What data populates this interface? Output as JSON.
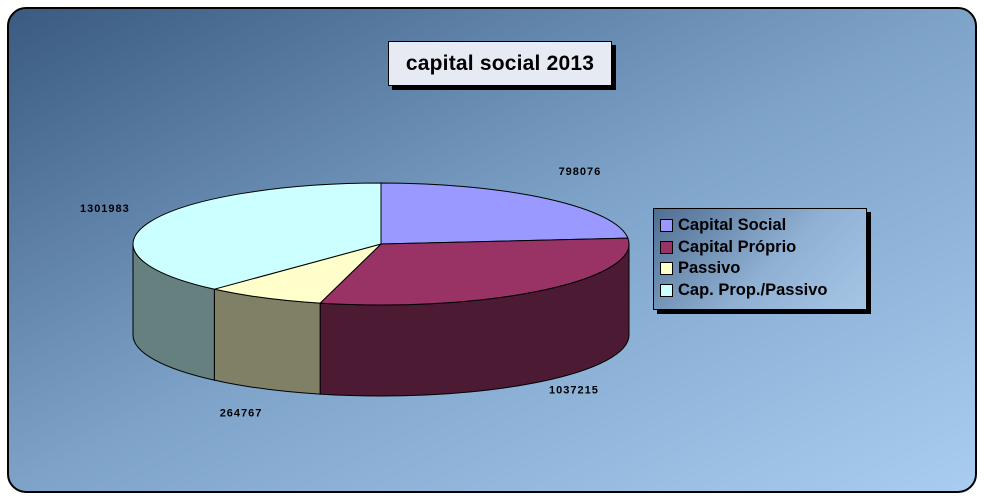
{
  "chart_data": {
    "type": "pie",
    "title": "capital social 2013",
    "categories": [
      "Capital Social",
      "Capital Próprio",
      "Passivo",
      "Cap. Prop./Passivo"
    ],
    "values": [
      798076,
      1037215,
      264767,
      1301983
    ],
    "data_labels": [
      "798076",
      "1037215",
      "264767",
      "1301983"
    ],
    "colors": [
      "#9999ff",
      "#993366",
      "#ffffcc",
      "#ccffff"
    ],
    "legend_position": "right",
    "style": "3d-pie"
  }
}
